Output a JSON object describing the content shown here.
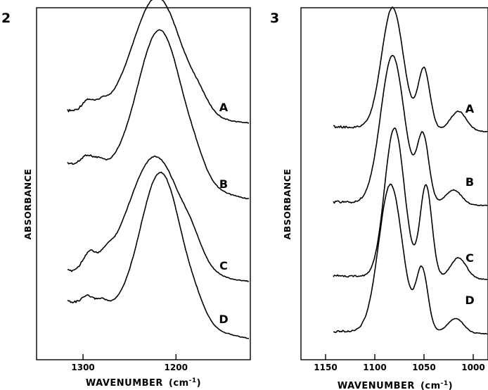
{
  "chart_data": [
    {
      "type": "line",
      "panel_label": "2",
      "ylabel": "ABSORBANCE",
      "xlabel": "WAVENUMBER",
      "xunit": "(cm",
      "xunit_sup": "-1",
      "xunit_close": ")",
      "xlim": [
        1350,
        1120
      ],
      "x_reversed": true,
      "ticks": [
        1300,
        1200
      ],
      "tick_labels": [
        "1300",
        "1200"
      ],
      "series": [
        {
          "name": "A",
          "peak": 1220,
          "width": 26,
          "height": 1.0,
          "base_left": 0.18,
          "base_right": 0.06,
          "features": [
            {
              "x": 1295,
              "h": 0.09,
              "w": 6
            },
            {
              "x": 1280,
              "h": 0.06,
              "w": 6
            },
            {
              "x": 1175,
              "h": 0.08,
              "w": 10
            }
          ]
        },
        {
          "name": "B",
          "peak": 1217,
          "width": 24,
          "height": 1.0,
          "base_left": 0.34,
          "base_right": 0.06,
          "features": [
            {
              "x": 1296,
              "h": 0.07,
              "w": 6
            },
            {
              "x": 1283,
              "h": 0.05,
              "w": 6
            },
            {
              "x": 1178,
              "h": 0.06,
              "w": 10
            }
          ]
        },
        {
          "name": "C",
          "peak": 1222,
          "width": 28,
          "height": 1.0,
          "base_left": 0.16,
          "base_right": 0.06,
          "features": [
            {
              "x": 1293,
              "h": 0.14,
              "w": 7
            },
            {
              "x": 1275,
              "h": 0.07,
              "w": 6
            },
            {
              "x": 1182,
              "h": 0.1,
              "w": 10
            }
          ]
        },
        {
          "name": "D",
          "peak": 1216,
          "width": 22,
          "height": 1.0,
          "base_left": 0.36,
          "base_right": 0.06,
          "features": [
            {
              "x": 1295,
              "h": 0.06,
              "w": 6
            },
            {
              "x": 1280,
              "h": 0.05,
              "w": 6
            },
            {
              "x": 1177,
              "h": 0.06,
              "w": 10
            }
          ]
        }
      ]
    },
    {
      "type": "line",
      "panel_label": "3",
      "ylabel": "ABSORBANCE",
      "xlabel": "WAVENUMBER",
      "xunit": "(cm",
      "xunit_sup": "-1",
      "xunit_close": ")",
      "xlim": [
        1175,
        985
      ],
      "x_reversed": true,
      "ticks": [
        1150,
        1100,
        1050,
        1000
      ],
      "tick_labels": [
        "1150",
        "1100",
        "1050",
        "1000"
      ],
      "series": [
        {
          "name": "A",
          "peak": 1082,
          "width": 11,
          "height": 1.0,
          "base_left": 0.05,
          "base_right": 0.0,
          "features": [
            {
              "x": 1050,
              "h": 0.5,
              "w": 6
            },
            {
              "x": 1015,
              "h": 0.16,
              "w": 8
            }
          ]
        },
        {
          "name": "B",
          "peak": 1082,
          "width": 12,
          "height": 1.0,
          "base_left": 0.03,
          "base_right": 0.0,
          "features": [
            {
              "x": 1051,
              "h": 0.45,
              "w": 6
            },
            {
              "x": 1020,
              "h": 0.1,
              "w": 8
            }
          ]
        },
        {
          "name": "C",
          "peak": 1080,
          "width": 10,
          "height": 1.0,
          "base_left": 0.03,
          "base_right": 0.0,
          "features": [
            {
              "x": 1048,
              "h": 0.62,
              "w": 6
            },
            {
              "x": 1015,
              "h": 0.14,
              "w": 8
            }
          ]
        },
        {
          "name": "D",
          "peak": 1084,
          "width": 12,
          "height": 1.0,
          "base_left": 0.02,
          "base_right": 0.0,
          "features": [
            {
              "x": 1052,
              "h": 0.42,
              "w": 6
            },
            {
              "x": 1018,
              "h": 0.1,
              "w": 8
            }
          ]
        }
      ]
    }
  ]
}
